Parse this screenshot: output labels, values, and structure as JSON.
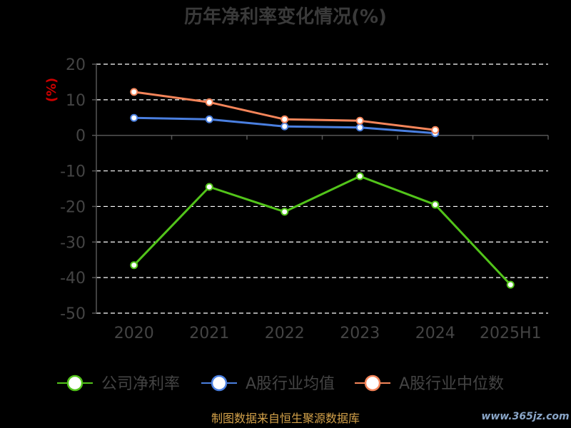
{
  "chart_data": {
    "type": "line",
    "title": "历年净利率变化情况(%)",
    "ylabel": "(%)",
    "xlabel": "",
    "categories": [
      "2020",
      "2021",
      "2022",
      "2023",
      "2024",
      "2025H1"
    ],
    "ylim": [
      -50,
      20
    ],
    "yticks": [
      20,
      10,
      0,
      -10,
      -20,
      -30,
      -40,
      -50
    ],
    "grid": true,
    "legend_position": "bottom",
    "series": [
      {
        "name": "公司净利率",
        "color": "#52c41a",
        "values": [
          -36.5,
          -14.5,
          -21.5,
          -11.5,
          -19.5,
          -42
        ]
      },
      {
        "name": "A股行业均值",
        "color": "#4a7fe0",
        "values": [
          4.9,
          4.5,
          2.5,
          2.2,
          0.6,
          null
        ]
      },
      {
        "name": "A股行业中位数",
        "color": "#f5855a",
        "values": [
          12.2,
          9.3,
          4.5,
          4.1,
          1.5,
          null
        ]
      }
    ]
  },
  "footer": {
    "source": "制图数据来自恒生聚源数据库",
    "watermark": "www.365jz.com"
  },
  "colors": {
    "title": "#3a3a3a",
    "axis_text": "#444444",
    "ylabel": "#cc0000",
    "grid": "#ffffff",
    "source": "#d4a24a",
    "watermark": "#8aa6c8"
  }
}
